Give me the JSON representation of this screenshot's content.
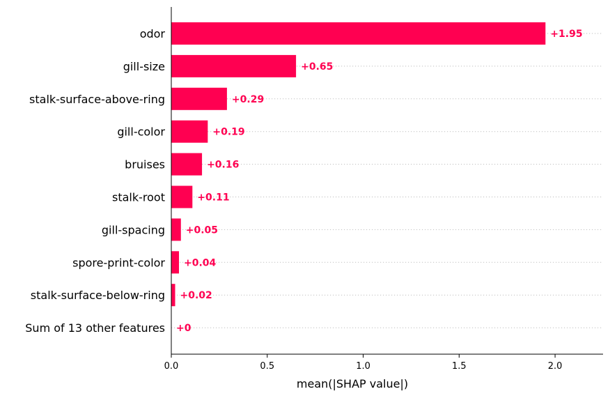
{
  "chart_data": {
    "type": "bar",
    "orientation": "horizontal",
    "categories": [
      "odor",
      "gill-size",
      "stalk-surface-above-ring",
      "gill-color",
      "bruises",
      "stalk-root",
      "gill-spacing",
      "spore-print-color",
      "stalk-surface-below-ring",
      "Sum of 13 other features"
    ],
    "values": [
      1.95,
      0.65,
      0.29,
      0.19,
      0.16,
      0.11,
      0.05,
      0.04,
      0.02,
      0
    ],
    "value_labels": [
      "+1.95",
      "+0.65",
      "+0.29",
      "+0.19",
      "+0.16",
      "+0.11",
      "+0.05",
      "+0.04",
      "+0.02",
      "+0"
    ],
    "xlabel": "mean(|SHAP value|)",
    "xlim": [
      0,
      2.25
    ],
    "xticks": [
      0.0,
      0.5,
      1.0,
      1.5,
      2.0
    ],
    "xtick_labels": [
      "0.0",
      "0.5",
      "1.0",
      "1.5",
      "2.0"
    ],
    "grid": "dotted horizontal guide lines per row",
    "bar_color": "#ff0051",
    "label_color": "#ff0051"
  }
}
